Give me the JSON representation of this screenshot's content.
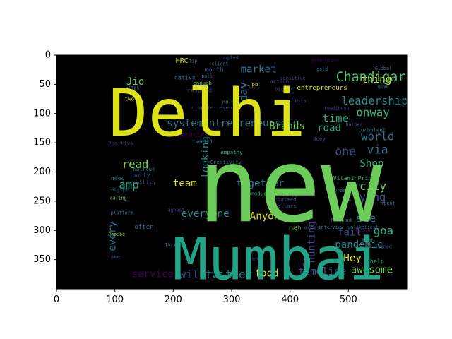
{
  "chart_data": {
    "type": "wordcloud",
    "xlim": [
      0,
      600
    ],
    "ylim": [
      400,
      0
    ],
    "xticks": [
      0,
      100,
      200,
      300,
      400,
      500
    ],
    "yticks": [
      0,
      50,
      100,
      150,
      200,
      250,
      300,
      350
    ],
    "background_color": "#000000",
    "colormap": "viridis",
    "words": [
      {
        "text": "new",
        "x": 400,
        "y": 225,
        "size": 175,
        "color": "#6ccd5a"
      },
      {
        "text": "Delhi",
        "x": 258,
        "y": 99,
        "size": 112,
        "color": "#dde318"
      },
      {
        "text": "Mumbai",
        "x": 380,
        "y": 349,
        "size": 100,
        "color": "#20a386"
      },
      {
        "text": "Chandigarh",
        "x": 545,
        "y": 38,
        "size": 22,
        "color": "#4ac16d"
      },
      {
        "text": "leadership",
        "x": 545,
        "y": 78,
        "size": 19,
        "color": "#238a8d"
      },
      {
        "text": "market",
        "x": 346,
        "y": 25,
        "size": 17,
        "color": "#2a788e"
      },
      {
        "text": "Jio",
        "x": 135,
        "y": 46,
        "size": 17,
        "color": "#5ec962"
      },
      {
        "text": "thing",
        "x": 548,
        "y": 42,
        "size": 17,
        "color": "#dde318"
      },
      {
        "text": "systementrepreneurship",
        "x": 302,
        "y": 117,
        "size": 17,
        "color": "#2a788e"
      },
      {
        "text": "Brands",
        "x": 395,
        "y": 122,
        "size": 17,
        "color": "#75d054"
      },
      {
        "text": "road",
        "x": 467,
        "y": 125,
        "size": 17,
        "color": "#2ab07f"
      },
      {
        "text": "time",
        "x": 478,
        "y": 108,
        "size": 19,
        "color": "#22a785"
      },
      {
        "text": "onway",
        "x": 542,
        "y": 98,
        "size": 19,
        "color": "#35b779"
      },
      {
        "text": "world",
        "x": 550,
        "y": 139,
        "size": 19,
        "color": "#2c728e"
      },
      {
        "text": "one",
        "x": 495,
        "y": 165,
        "size": 20,
        "color": "#3e4989"
      },
      {
        "text": "via",
        "x": 550,
        "y": 162,
        "size": 20,
        "color": "#2c728e"
      },
      {
        "text": "Shop",
        "x": 540,
        "y": 186,
        "size": 17,
        "color": "#2ab07f"
      },
      {
        "text": "read",
        "x": 135,
        "y": 187,
        "size": 19,
        "color": "#7ad151"
      },
      {
        "text": "amp",
        "x": 124,
        "y": 222,
        "size": 19,
        "color": "#22a785"
      },
      {
        "text": "team",
        "x": 220,
        "y": 220,
        "size": 17,
        "color": "#dde318"
      },
      {
        "text": "together",
        "x": 349,
        "y": 220,
        "size": 17,
        "color": "#2a788e"
      },
      {
        "text": "city",
        "x": 542,
        "y": 224,
        "size": 19,
        "color": "#75d054"
      },
      {
        "text": "trying",
        "x": 530,
        "y": 243,
        "size": 19,
        "color": "#3b528b"
      },
      {
        "text": "everyone",
        "x": 255,
        "y": 272,
        "size": 17,
        "color": "#238a8d"
      },
      {
        "text": "Anyone",
        "x": 362,
        "y": 276,
        "size": 17,
        "color": "#dde318"
      },
      {
        "text": "see",
        "x": 530,
        "y": 279,
        "size": 19,
        "color": "#2c728e"
      },
      {
        "text": "goa",
        "x": 560,
        "y": 300,
        "size": 19,
        "color": "#22a785"
      },
      {
        "text": "fail",
        "x": 502,
        "y": 304,
        "size": 17,
        "color": "#3e4989"
      },
      {
        "text": "pandemic",
        "x": 518,
        "y": 325,
        "size": 17,
        "color": "#238a8d"
      },
      {
        "text": "Hey",
        "x": 507,
        "y": 348,
        "size": 17,
        "color": "#dde318"
      },
      {
        "text": "awesome",
        "x": 540,
        "y": 368,
        "size": 17,
        "color": "#7ad151"
      },
      {
        "text": "timeline",
        "x": 455,
        "y": 371,
        "size": 17,
        "color": "#3b528b"
      },
      {
        "text": "food",
        "x": 360,
        "y": 374,
        "size": 17,
        "color": "#dde318"
      },
      {
        "text": "twitter",
        "x": 295,
        "y": 375,
        "size": 19,
        "color": "#2a788e"
      },
      {
        "text": "will",
        "x": 233,
        "y": 375,
        "size": 19,
        "color": "#3e4989"
      },
      {
        "text": "service",
        "x": 165,
        "y": 375,
        "size": 17,
        "color": "#440154"
      },
      {
        "text": "every",
        "x": 96,
        "y": 310,
        "size": 17,
        "color": "#2c728e",
        "rotate": -90
      },
      {
        "text": "looking",
        "x": 255,
        "y": 175,
        "size": 17,
        "color": "#238a8d",
        "rotate": -90
      },
      {
        "text": "hunting",
        "x": 437,
        "y": 320,
        "size": 17,
        "color": "#3e4989",
        "rotate": -90
      },
      {
        "text": "day",
        "x": 320,
        "y": 63,
        "size": 19,
        "color": "#2c728e",
        "rotate": -90
      },
      {
        "text": "HRC",
        "x": 215,
        "y": 10,
        "size": 12,
        "color": "#dde318"
      },
      {
        "text": "month",
        "x": 270,
        "y": 26,
        "size": 11,
        "color": "#3e4989"
      },
      {
        "text": "entrepreneurs",
        "x": 455,
        "y": 57,
        "size": 11,
        "color": "#dde318"
      },
      {
        "text": "VitaminPrint",
        "x": 510,
        "y": 210,
        "size": 10,
        "color": "#35b779"
      },
      {
        "text": "productivity",
        "x": 360,
        "y": 237,
        "size": 9,
        "color": "#2ab07f"
      },
      {
        "text": "Easy",
        "x": 525,
        "y": 300,
        "size": 11,
        "color": "#440154"
      },
      {
        "text": "often",
        "x": 150,
        "y": 295,
        "size": 11,
        "color": "#2c728e"
      },
      {
        "text": "party",
        "x": 145,
        "y": 205,
        "size": 10,
        "color": "#3e4989"
      },
      {
        "text": "Character",
        "x": 230,
        "y": 137,
        "size": 11,
        "color": "#440154"
      },
      {
        "text": "Positive",
        "x": 110,
        "y": 151,
        "size": 9,
        "color": "#3e4989"
      },
      {
        "text": "Phoebe",
        "x": 103,
        "y": 307,
        "size": 8,
        "color": "#7ad151"
      },
      {
        "text": "access",
        "x": 440,
        "y": 295,
        "size": 9,
        "color": "#3e4989"
      },
      {
        "text": "rush",
        "x": 408,
        "y": 295,
        "size": 9,
        "color": "#7ad151"
      },
      {
        "text": "help",
        "x": 549,
        "y": 352,
        "size": 10,
        "color": "#2ab07f"
      },
      {
        "text": "Joined",
        "x": 560,
        "y": 328,
        "size": 8,
        "color": "#3e4989"
      },
      {
        "text": "facebook",
        "x": 488,
        "y": 283,
        "size": 8,
        "color": "#2c728e"
      },
      {
        "text": "native",
        "x": 220,
        "y": 38,
        "size": 10,
        "color": "#2c728e"
      },
      {
        "text": "enough",
        "x": 250,
        "y": 48,
        "size": 9,
        "color": "#75d054"
      },
      {
        "text": "respond",
        "x": 245,
        "y": 60,
        "size": 10,
        "color": "#3e4989"
      },
      {
        "text": "crisis",
        "x": 412,
        "y": 78,
        "size": 9,
        "color": "#3e4989"
      },
      {
        "text": "bigger",
        "x": 390,
        "y": 58,
        "size": 9,
        "color": "#3e4989"
      },
      {
        "text": "action",
        "x": 382,
        "y": 45,
        "size": 9,
        "color": "#3e4989"
      },
      {
        "text": "sensitive",
        "x": 405,
        "y": 40,
        "size": 8,
        "color": "#3e4989"
      },
      {
        "text": "dispute",
        "x": 250,
        "y": 90,
        "size": 9,
        "color": "#3e4989"
      },
      {
        "text": "even",
        "x": 290,
        "y": 90,
        "size": 9,
        "color": "#3e4989"
      },
      {
        "text": "normal",
        "x": 300,
        "y": 80,
        "size": 9,
        "color": "#2c728e"
      },
      {
        "text": "two",
        "x": 125,
        "y": 75,
        "size": 9,
        "color": "#dde318"
      },
      {
        "text": "empathy",
        "x": 300,
        "y": 166,
        "size": 9,
        "color": "#2ab07f"
      },
      {
        "text": "Creativity",
        "x": 290,
        "y": 183,
        "size": 9,
        "color": "#2c728e"
      },
      {
        "text": "haircut",
        "x": 150,
        "y": 195,
        "size": 9,
        "color": "#2c728e"
      },
      {
        "text": "need",
        "x": 105,
        "y": 210,
        "size": 10,
        "color": "#2c728e"
      },
      {
        "text": "publish",
        "x": 150,
        "y": 218,
        "size": 9,
        "color": "#3e4989"
      },
      {
        "text": "digital",
        "x": 110,
        "y": 231,
        "size": 8,
        "color": "#2c728e"
      },
      {
        "text": "caring",
        "x": 106,
        "y": 245,
        "size": 8,
        "color": "#7ad151"
      },
      {
        "text": "platform",
        "x": 112,
        "y": 270,
        "size": 8,
        "color": "#2c728e"
      },
      {
        "text": "tweeted",
        "x": 250,
        "y": 148,
        "size": 8,
        "color": "#2c728e"
      },
      {
        "text": "Joey",
        "x": 450,
        "y": 143,
        "size": 9,
        "color": "#3e4989"
      },
      {
        "text": "barber",
        "x": 510,
        "y": 119,
        "size": 8,
        "color": "#3e4989"
      },
      {
        "text": "turbulent",
        "x": 540,
        "y": 128,
        "size": 9,
        "color": "#2c728e"
      },
      {
        "text": "dollars",
        "x": 392,
        "y": 258,
        "size": 9,
        "color": "#3e4989"
      },
      {
        "text": "claimed",
        "x": 392,
        "y": 247,
        "size": 9,
        "color": "#3e4989"
      },
      {
        "text": "interview",
        "x": 470,
        "y": 295,
        "size": 8,
        "color": "#2c728e"
      },
      {
        "text": "unlikeliest",
        "x": 525,
        "y": 295,
        "size": 8,
        "color": "#2c728e"
      },
      {
        "text": "ordering",
        "x": 495,
        "y": 232,
        "size": 8,
        "color": "#2c728e"
      },
      {
        "text": "says",
        "x": 512,
        "y": 222,
        "size": 8,
        "color": "#2c728e"
      },
      {
        "text": "Global",
        "x": 560,
        "y": 23,
        "size": 8,
        "color": "#2c728e"
      },
      {
        "text": "tip",
        "x": 234,
        "y": 10,
        "size": 8,
        "color": "#2c728e"
      },
      {
        "text": "bull",
        "x": 258,
        "y": 36,
        "size": 8,
        "color": "#2c728e"
      },
      {
        "text": "coupled",
        "x": 295,
        "y": 5,
        "size": 8,
        "color": "#3e4989"
      },
      {
        "text": "client",
        "x": 280,
        "y": 15,
        "size": 8,
        "color": "#2c728e"
      },
      {
        "text": "po",
        "x": 340,
        "y": 50,
        "size": 9,
        "color": "#dde318"
      },
      {
        "text": "https",
        "x": 130,
        "y": 56,
        "size": 8,
        "color": "#2c728e"
      },
      {
        "text": "end",
        "x": 343,
        "y": 348,
        "size": 9,
        "color": "#3e4989"
      },
      {
        "text": "lack",
        "x": 424,
        "y": 358,
        "size": 9,
        "color": "#3e4989"
      },
      {
        "text": "kind",
        "x": 532,
        "y": 317,
        "size": 8,
        "color": "#2c728e"
      },
      {
        "text": "take",
        "x": 98,
        "y": 345,
        "size": 9,
        "color": "#3e4989"
      },
      {
        "text": "gold",
        "x": 455,
        "y": 24,
        "size": 8,
        "color": "#2c728e"
      },
      {
        "text": "Thrive",
        "x": 200,
        "y": 325,
        "size": 8,
        "color": "#2c728e"
      },
      {
        "text": "aghast",
        "x": 205,
        "y": 265,
        "size": 8,
        "color": "#3e4989"
      },
      {
        "text": "Hi",
        "x": 402,
        "y": 196,
        "size": 8,
        "color": "#2c728e"
      },
      {
        "text": "give",
        "x": 560,
        "y": 54,
        "size": 8,
        "color": "#2c728e"
      },
      {
        "text": "spent",
        "x": 568,
        "y": 254,
        "size": 8,
        "color": "#2c728e"
      },
      {
        "text": "re",
        "x": 408,
        "y": 240,
        "size": 9,
        "color": "#3e4989"
      },
      {
        "text": "readiness",
        "x": 480,
        "y": 91,
        "size": 8,
        "color": "#3e4989"
      },
      {
        "text": "generation",
        "x": 460,
        "y": 9,
        "size": 8,
        "color": "#440154"
      }
    ]
  }
}
